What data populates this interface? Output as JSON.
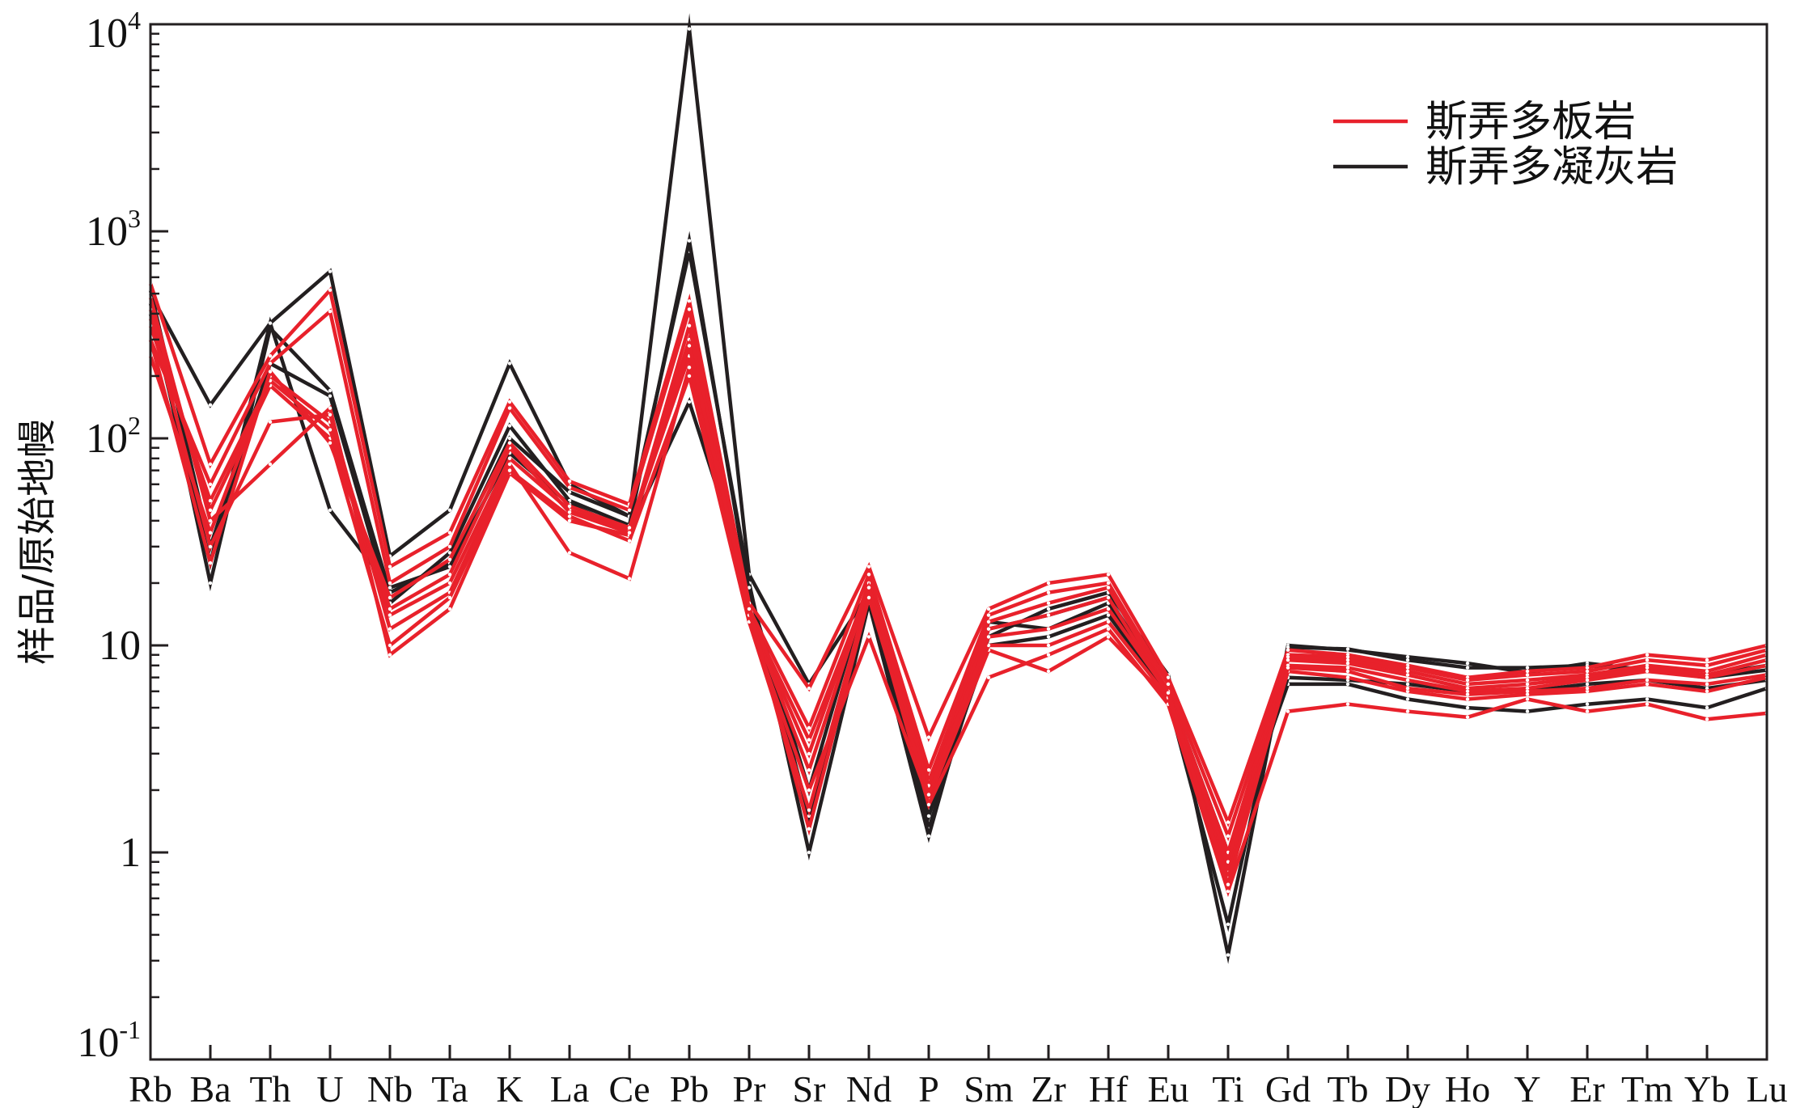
{
  "chart_data": {
    "type": "line",
    "title": "",
    "xlabel": "",
    "ylabel": "样品/原始地幔",
    "yscale": "log",
    "ylim": [
      0.1,
      10000
    ],
    "y_ticks": [
      {
        "value": 10000,
        "base": "10",
        "exp": "4"
      },
      {
        "value": 1000,
        "base": "10",
        "exp": "3"
      },
      {
        "value": 100,
        "base": "10",
        "exp": "2"
      },
      {
        "value": 10,
        "base": "10",
        "exp": ""
      },
      {
        "value": 1,
        "base": "1",
        "exp": ""
      },
      {
        "value": 0.1,
        "base": "10",
        "exp": "-1"
      }
    ],
    "grid": false,
    "legend_position": "top-right",
    "categories": [
      "Rb",
      "Ba",
      "Th",
      "U",
      "Nb",
      "Ta",
      "K",
      "La",
      "Ce",
      "Pb",
      "Pr",
      "Sr",
      "Nd",
      "P",
      "Sm",
      "Zr",
      "Hf",
      "Eu",
      "Ti",
      "Gd",
      "Tb",
      "Dy",
      "Ho",
      "Y",
      "Er",
      "Tm",
      "Yb",
      "Lu"
    ],
    "groups": [
      {
        "legend": "斯弄多板岩",
        "color": "#e8212b"
      },
      {
        "legend": "斯弄多凝灰岩",
        "color": "#231f20"
      }
    ],
    "series": [
      {
        "group": 1,
        "values": [
          500,
          145,
          360,
          640,
          27,
          45,
          230,
          60,
          42,
          9500,
          22,
          6.5,
          18,
          1.3,
          11,
          15,
          18,
          7.2,
          0.32,
          10,
          9.5,
          8.8,
          8.2,
          7.4,
          8.2,
          7.6,
          7.0,
          7.6
        ]
      },
      {
        "group": 1,
        "values": [
          450,
          20,
          340,
          170,
          18,
          25,
          100,
          55,
          42,
          800,
          20,
          1.0,
          16,
          1.2,
          13,
          12,
          16,
          5.5,
          0.45,
          9.8,
          9.6,
          8.5,
          7.8,
          7.8,
          8.0,
          7.5,
          7.2,
          8.0
        ]
      },
      {
        "group": 1,
        "values": [
          520,
          30,
          230,
          160,
          16,
          28,
          115,
          50,
          38,
          900,
          18,
          2.0,
          20,
          1.6,
          12,
          14,
          17,
          6.0,
          1.0,
          6.5,
          6.5,
          5.5,
          5.0,
          4.8,
          5.2,
          5.5,
          5.0,
          6.2
        ]
      },
      {
        "group": 1,
        "values": [
          400,
          25,
          360,
          45,
          19,
          24,
          85,
          48,
          36,
          150,
          19,
          1.5,
          18,
          1.5,
          10,
          11,
          14,
          5.8,
          0.8,
          7.0,
          6.8,
          6.5,
          6.0,
          6.0,
          6.5,
          6.8,
          6.2,
          6.8
        ]
      },
      {
        "group": 0,
        "values": [
          560,
          75,
          250,
          520,
          24,
          35,
          150,
          62,
          48,
          460,
          16,
          6.2,
          24,
          3.6,
          15,
          20,
          22,
          7.0,
          1.4,
          9.5,
          9.0,
          8.0,
          7.0,
          7.5,
          7.8,
          9.0,
          8.5,
          10.0
        ]
      },
      {
        "group": 0,
        "values": [
          300,
          60,
          230,
          410,
          20,
          30,
          140,
          58,
          45,
          420,
          15,
          4.0,
          22,
          2.5,
          14,
          18,
          20,
          6.5,
          1.2,
          9.0,
          8.8,
          7.8,
          6.8,
          7.2,
          7.5,
          8.5,
          8.0,
          9.5
        ]
      },
      {
        "group": 0,
        "values": [
          480,
          40,
          75,
          140,
          9,
          15,
          68,
          40,
          34,
          300,
          14,
          3.0,
          20,
          2.2,
          13,
          16,
          19,
          6.0,
          1.0,
          8.8,
          8.5,
          7.5,
          6.5,
          6.8,
          7.2,
          8.0,
          7.5,
          9.0
        ]
      },
      {
        "group": 0,
        "values": [
          250,
          35,
          200,
          120,
          14,
          20,
          80,
          45,
          36,
          250,
          14,
          2.5,
          19,
          2.0,
          12,
          14,
          17,
          5.8,
          0.9,
          8.5,
          8.2,
          7.2,
          6.2,
          6.5,
          7.0,
          7.8,
          7.2,
          8.5
        ]
      },
      {
        "group": 0,
        "values": [
          380,
          30,
          120,
          130,
          12,
          18,
          75,
          28,
          21,
          220,
          13,
          2.0,
          11,
          1.8,
          9.5,
          7.5,
          11,
          5.5,
          0.8,
          8.0,
          7.8,
          6.8,
          6.0,
          6.2,
          6.8,
          7.5,
          7.0,
          8.0
        ]
      },
      {
        "group": 0,
        "values": [
          420,
          45,
          180,
          100,
          10,
          17,
          70,
          42,
          32,
          200,
          13,
          1.6,
          18,
          1.7,
          7,
          9,
          12,
          5.2,
          0.65,
          4.8,
          5.2,
          4.8,
          4.5,
          5.5,
          4.8,
          5.2,
          4.4,
          4.7
        ]
      },
      {
        "group": 0,
        "values": [
          350,
          50,
          190,
          110,
          15,
          22,
          90,
          44,
          35,
          350,
          14,
          3.5,
          19,
          2.1,
          10,
          10,
          13,
          5.6,
          0.75,
          7.5,
          7.0,
          6.0,
          5.5,
          5.8,
          6.0,
          6.5,
          6.0,
          7.0
        ]
      },
      {
        "group": 0,
        "values": [
          300,
          25,
          210,
          95,
          17,
          26,
          95,
          47,
          37,
          280,
          15,
          1.3,
          17,
          1.9,
          11,
          12,
          15,
          5.9,
          0.7,
          7.8,
          7.5,
          6.2,
          5.8,
          6.0,
          6.2,
          6.8,
          6.5,
          7.2
        ]
      }
    ]
  }
}
